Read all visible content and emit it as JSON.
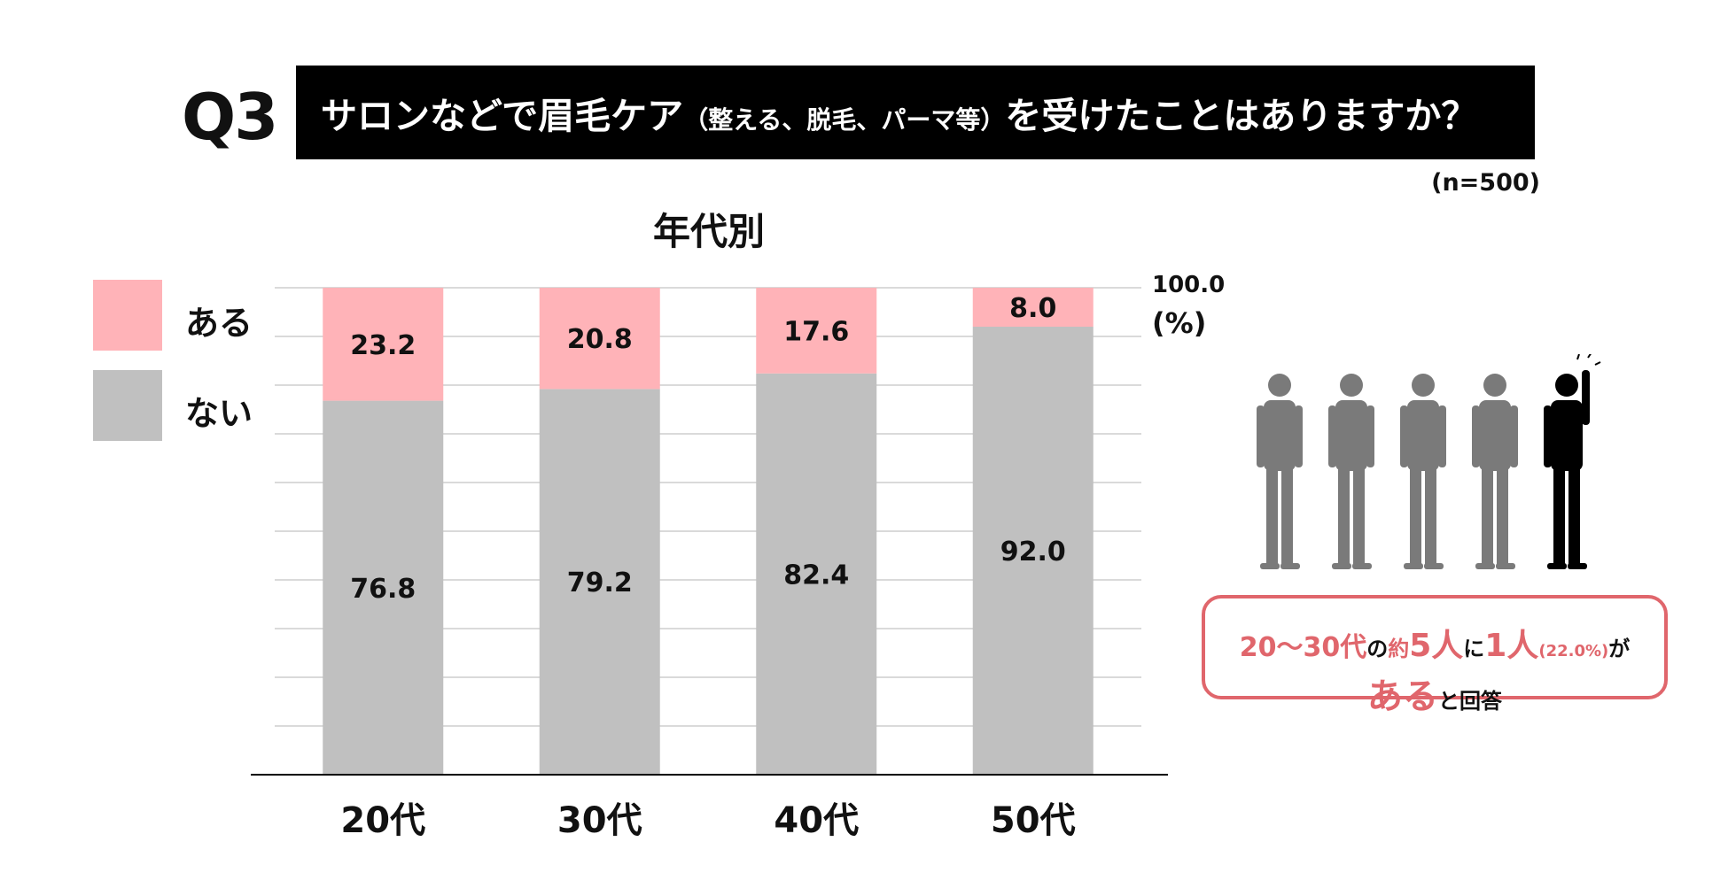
{
  "question": {
    "number": "Q3",
    "text_main": "サロンなどで眉毛ケア",
    "text_paren": "（整える、脱毛、パーマ等）",
    "text_end": "を受けたことはありますか？"
  },
  "sample_size": "(n=500)",
  "colors": {
    "yes": "#ffb3b8",
    "no": "#c0c0c0",
    "accent": "#e0666c"
  },
  "chart_data": {
    "type": "bar",
    "stacked": true,
    "title": "年代別",
    "categories": [
      "20代",
      "30代",
      "40代",
      "50代"
    ],
    "series": [
      {
        "name": "ない",
        "values": [
          76.8,
          79.2,
          82.4,
          92.0
        ]
      },
      {
        "name": "ある",
        "values": [
          23.2,
          20.8,
          17.6,
          8.0
        ]
      }
    ],
    "ylim": [
      0,
      100
    ],
    "top_label": "100.0",
    "unit": "(%)",
    "grid": true,
    "legend": "left"
  },
  "legend": {
    "yes": "ある",
    "no": "ない"
  },
  "callout": {
    "age_range": "20～30代",
    "no1": "の",
    "ratio_a": "約",
    "ratio_b": "5人",
    "ratio_c": "に",
    "ratio_d": "1人",
    "pct": "(22.0%)",
    "ga": "が",
    "aru": "ある",
    "kaito": "と回答"
  },
  "people_icons": [
    "person-icon",
    "person-icon",
    "person-icon",
    "person-icon",
    "person-raising-hand-icon"
  ]
}
